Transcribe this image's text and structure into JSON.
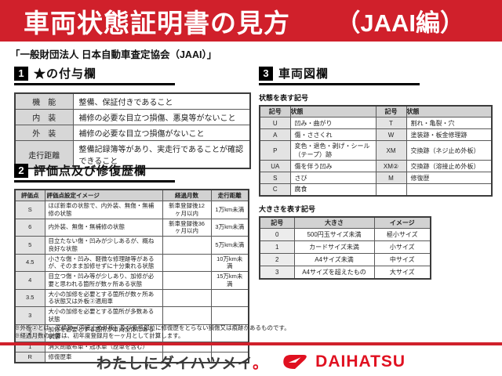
{
  "header": {
    "title": "車両状態証明書の見方",
    "edition": "（JAAI編）"
  },
  "org_line": "「一般財団法人 日本自動車査定協会（JAAI）」",
  "section1": {
    "number": "1",
    "title": "★の付与欄",
    "rows": [
      [
        "機　能",
        "整備、保証付きであること"
      ],
      [
        "内　装",
        "補修の必要な目立つ損傷、悪臭等がないこと"
      ],
      [
        "外　装",
        "補修の必要な目立つ損傷がないこと"
      ],
      [
        "走行距離",
        "整備記録簿等があり、実走行であることが確認できること"
      ]
    ]
  },
  "section2": {
    "number": "2",
    "title": "評価点及び修復歴欄",
    "headers": [
      "評価点",
      "評価点設定イメージ",
      "経過月数",
      "走行距離"
    ],
    "rows": [
      [
        "S",
        "ほぼ新車の状態で、内外装、無傷・無補修の状態",
        "新車登録後12ヶ月以内",
        "1万km未満"
      ],
      [
        "6",
        "内外装、無傷・無補修の状態",
        "新車登録後36ヶ月以内",
        "3万km未満"
      ],
      [
        "5",
        "目立たない傷・凹みが少しあるが、概ね良好な状態",
        "",
        "5万km未満"
      ],
      [
        "4.5",
        "小さな傷・凹み、軽微な修理跡等があるが、そのまま加修せずに十分乗れる状態",
        "",
        "10万km未満"
      ],
      [
        "4",
        "目立つ傷・凹み等が少しあり、加修が必要と思われる箇所が数ヶ所ある状態",
        "",
        "15万km未満"
      ],
      [
        "3.5",
        "大小の加修を必要とする箇所が数ヶ所ある状態又は外板②適用車",
        "",
        ""
      ],
      [
        "3",
        "大小の加修を必要とする箇所が多数ある状態",
        "",
        ""
      ],
      [
        "2",
        "加修を必要とする箇所が車両全体にある状態",
        "",
        ""
      ],
      [
        "1",
        "消火剤散布車・冠水車（歴車を含む）",
        "",
        ""
      ],
      [
        "R",
        "修復歴車",
        "",
        ""
      ]
    ]
  },
  "section3": {
    "number": "3",
    "title": "車両図欄",
    "condition_table": {
      "subtitle": "状態を表す記号",
      "headers": [
        "記号",
        "状態",
        "記号",
        "状態"
      ],
      "rows": [
        [
          "U",
          "凹み・曲がり",
          "T",
          "割れ・亀裂・穴"
        ],
        [
          "A",
          "傷・ささくれ",
          "W",
          "塗装跡・板金修理跡"
        ],
        [
          "P",
          "変色・退色・剥げ・シール（テープ）跡",
          "XM",
          "交換跡（ネジ止め外板）"
        ],
        [
          "UA",
          "傷を伴う凹み",
          "XM②",
          "交換跡（溶接止め外板）"
        ],
        [
          "S",
          "さび",
          "M",
          "修復歴"
        ],
        [
          "C",
          "腐食",
          "",
          ""
        ]
      ]
    },
    "size_table": {
      "subtitle": "大きさを表す記号",
      "headers": [
        "記号",
        "大きさ",
        "イメージ"
      ],
      "rows": [
        [
          "0",
          "500円玉サイズ未満",
          "極小サイズ"
        ],
        [
          "1",
          "カードサイズ未満",
          "小サイズ"
        ],
        [
          "2",
          "A4サイズ未満",
          "中サイズ"
        ],
        [
          "3",
          "A4サイズを超えたもの",
          "大サイズ"
        ]
      ]
    }
  },
  "footnotes": [
    "※外板②とは、交換跡（溶接止め外板）及び骨格部位に修復歴をとらない損傷又は痕跡があるものです。",
    "※経過月数の計算は、初年度登録月を一ヶ月として計算します。"
  ],
  "footer": {
    "slogan": "わたしにダイハツメイ",
    "slogan_period": "。",
    "brand": "DAIHATSU"
  },
  "colors": {
    "accent_red": "#d0202b",
    "logo_red": "#e01020",
    "header_cell_gray": "#d2d2d2",
    "label_cell_gray": "#e3e3e3"
  }
}
